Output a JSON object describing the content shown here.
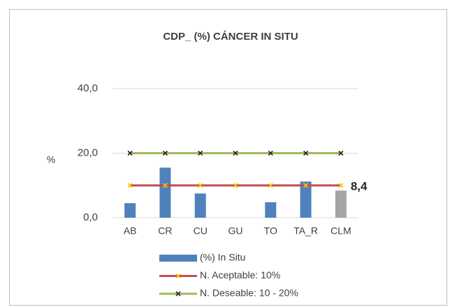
{
  "chart_data": {
    "type": "bar",
    "title": "CDP_ (%) CÁNCER IN SITU",
    "y_label": "%",
    "categories": [
      "AB",
      "CR",
      "CU",
      "GU",
      "TO",
      "TA_R",
      "CLM"
    ],
    "series": [
      {
        "name": "(%) In Situ",
        "type": "bar",
        "color": "#4f81bd",
        "colors": [
          "#4f81bd",
          "#4f81bd",
          "#4f81bd",
          "#4f81bd",
          "#4f81bd",
          "#4f81bd",
          "#a5a5a5"
        ],
        "values": [
          4.5,
          15.5,
          7.5,
          0,
          4.8,
          11.2,
          8.4
        ],
        "value_labels": [
          null,
          null,
          null,
          null,
          null,
          null,
          "8,4"
        ]
      },
      {
        "name": "N. Aceptable: 10%",
        "type": "line",
        "color": "#c0504d",
        "marker_color": "#ffc000",
        "values": [
          10,
          10,
          10,
          10,
          10,
          10,
          10
        ]
      },
      {
        "name": "N. Deseable: 10 - 20%",
        "type": "line",
        "color": "#9bbb59",
        "marker_color": "#222222",
        "values": [
          20,
          20,
          20,
          20,
          20,
          20,
          20
        ]
      }
    ],
    "ylim": [
      0,
      40
    ],
    "yticks": [
      {
        "value": 0,
        "label": "0,0"
      },
      {
        "value": 20,
        "label": "20,0"
      },
      {
        "value": 40,
        "label": "40,0"
      }
    ],
    "grid": true,
    "legend": "bottom"
  }
}
